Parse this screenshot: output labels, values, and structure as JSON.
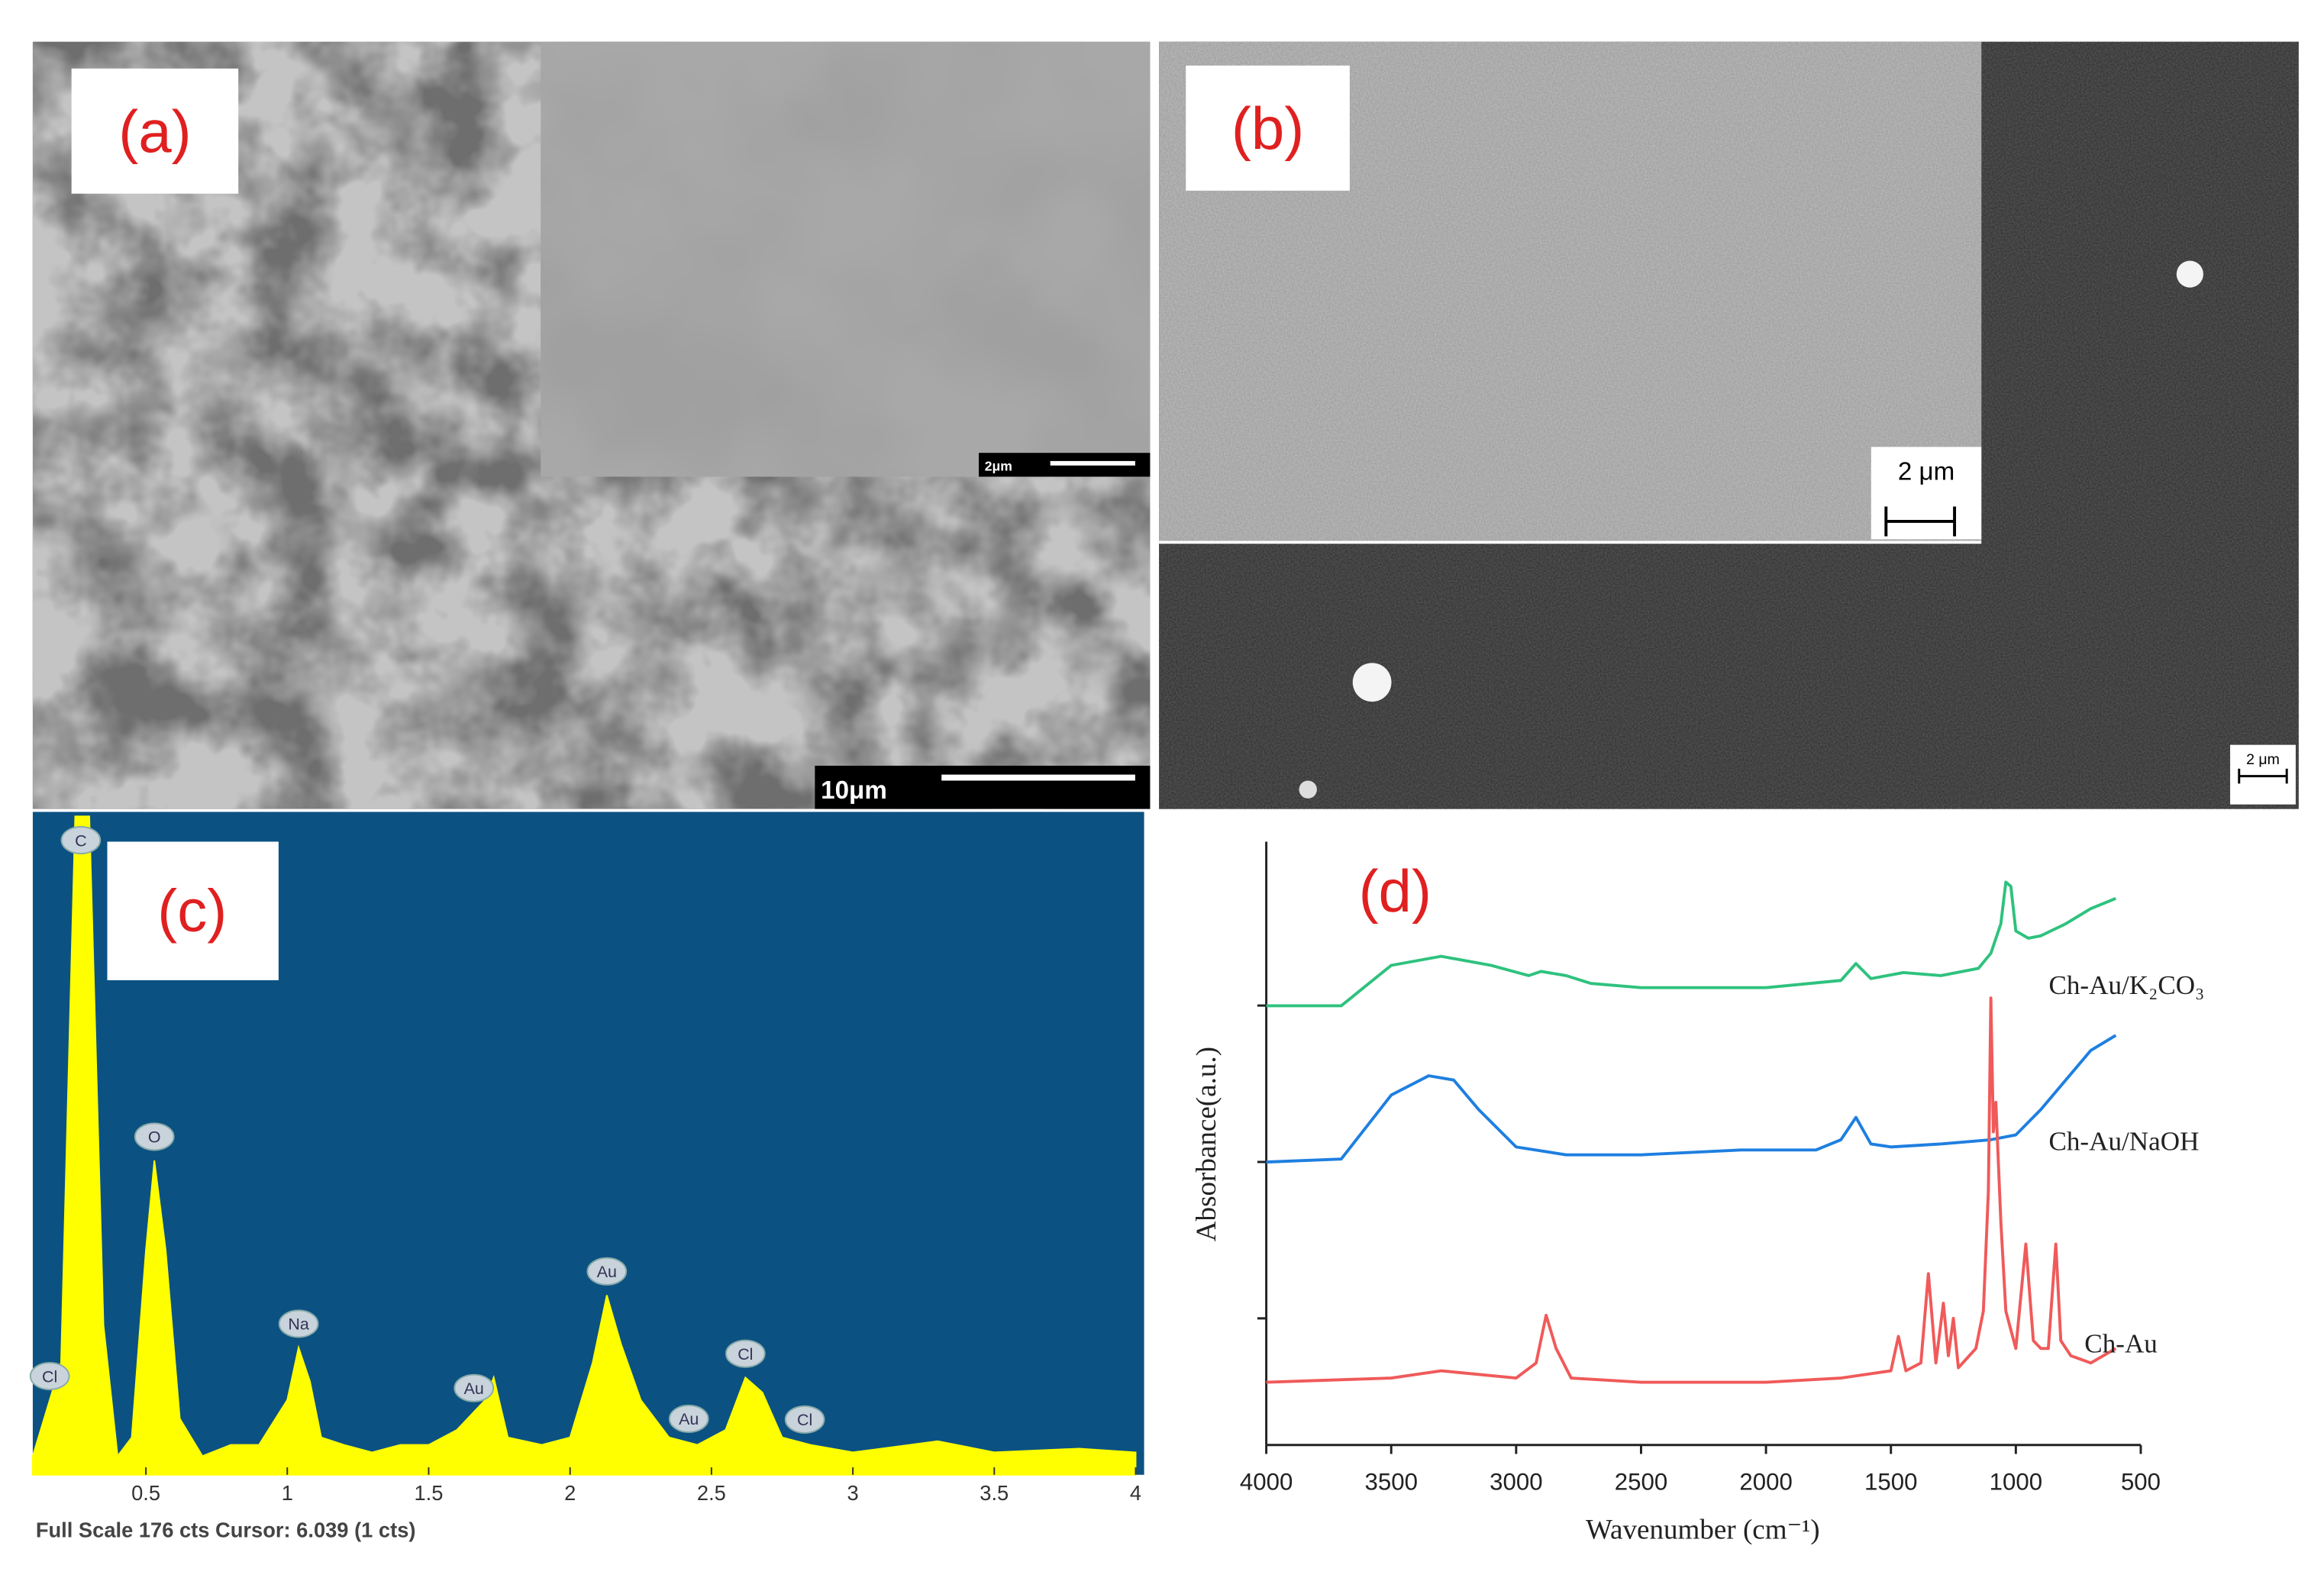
{
  "panels": [
    {
      "label": "(a)",
      "scale_bars": [
        "10μm",
        "2μm"
      ]
    },
    {
      "label": "(b)",
      "scale_bars": [
        "2 μm",
        "2 μm"
      ]
    }
  ],
  "chart_data": [
    {
      "type": "area",
      "label": "(c)",
      "color": "#ffff00",
      "x": [
        0.1,
        0.2,
        0.25,
        0.3,
        0.35,
        0.4,
        0.45,
        0.5,
        0.53,
        0.57,
        0.62,
        0.7,
        0.8,
        0.9,
        1.0,
        1.04,
        1.08,
        1.12,
        1.2,
        1.3,
        1.4,
        1.5,
        1.6,
        1.7,
        1.73,
        1.78,
        1.9,
        2.0,
        2.08,
        2.13,
        2.18,
        2.25,
        2.35,
        2.45,
        2.55,
        2.62,
        2.68,
        2.75,
        2.85,
        3.0,
        3.3,
        3.5,
        3.8,
        4.0
      ],
      "values": [
        5,
        30,
        176,
        176,
        40,
        5,
        10,
        60,
        84,
        60,
        15,
        5,
        8,
        8,
        20,
        34,
        25,
        10,
        8,
        6,
        8,
        8,
        12,
        20,
        26,
        10,
        8,
        10,
        30,
        48,
        35,
        20,
        10,
        8,
        12,
        26,
        22,
        10,
        8,
        6,
        9,
        6,
        7,
        6
      ],
      "xlim": [
        0.1,
        4.03
      ],
      "xticks": [
        0.5,
        1,
        1.5,
        2,
        2.5,
        3,
        3.5,
        4
      ],
      "ylim": [
        0,
        176
      ],
      "peak_labels": [
        {
          "text": "C",
          "x": 0.27
        },
        {
          "text": "Cl",
          "x": 0.16
        },
        {
          "text": "O",
          "x": 0.53
        },
        {
          "text": "Na",
          "x": 1.04
        },
        {
          "text": "Au",
          "x": 1.66
        },
        {
          "text": "Au",
          "x": 2.13
        },
        {
          "text": "Au",
          "x": 2.42
        },
        {
          "text": "Cl",
          "x": 2.62
        },
        {
          "text": "Cl",
          "x": 2.83
        }
      ],
      "footer": "Full Scale 176 cts Cursor: 6.039  (1 cts)"
    },
    {
      "type": "line",
      "label": "(d)",
      "xlabel": "Wavenumber (cm⁻¹)",
      "ylabel": "Absorbance(a.u.)",
      "xlim": [
        4000,
        500
      ],
      "xticks": [
        4000,
        3500,
        3000,
        2500,
        2000,
        1500,
        1000,
        500
      ],
      "ylim": [
        0,
        10
      ],
      "series": [
        {
          "name": "Ch-Au/K₂CO₃",
          "color": "#2ec27e",
          "x": [
            4000,
            3700,
            3500,
            3300,
            3100,
            2950,
            2900,
            2800,
            2700,
            2500,
            2000,
            1700,
            1640,
            1580,
            1450,
            1300,
            1150,
            1100,
            1060,
            1040,
            1020,
            1000,
            950,
            900,
            800,
            700,
            600
          ],
          "values": [
            7.28,
            7.28,
            7.95,
            8.1,
            7.95,
            7.78,
            7.85,
            7.78,
            7.65,
            7.58,
            7.58,
            7.7,
            7.98,
            7.73,
            7.83,
            7.78,
            7.9,
            8.15,
            8.64,
            9.33,
            9.26,
            8.52,
            8.4,
            8.44,
            8.64,
            8.89,
            9.06
          ]
        },
        {
          "name": "Ch-Au/NaOH",
          "color": "#1e7fe0",
          "x": [
            4000,
            3700,
            3500,
            3350,
            3250,
            3150,
            3000,
            2800,
            2500,
            2100,
            1800,
            1700,
            1640,
            1580,
            1500,
            1300,
            1100,
            1000,
            900,
            800,
            700,
            600
          ],
          "values": [
            4.69,
            4.74,
            5.8,
            6.12,
            6.05,
            5.56,
            4.94,
            4.81,
            4.81,
            4.89,
            4.89,
            5.06,
            5.43,
            4.99,
            4.94,
            4.99,
            5.06,
            5.14,
            5.56,
            6.05,
            6.54,
            6.79
          ]
        },
        {
          "name": "Ch-Au",
          "color": "#f05a5a",
          "x": [
            4000,
            3500,
            3300,
            3000,
            2920,
            2880,
            2840,
            2780,
            2500,
            2000,
            1700,
            1500,
            1470,
            1440,
            1380,
            1350,
            1320,
            1290,
            1270,
            1250,
            1230,
            1160,
            1130,
            1110,
            1100,
            1090,
            1080,
            1060,
            1040,
            1000,
            960,
            930,
            900,
            870,
            840,
            820,
            780,
            700,
            600
          ],
          "values": [
            1.04,
            1.11,
            1.23,
            1.11,
            1.36,
            2.15,
            1.6,
            1.11,
            1.04,
            1.04,
            1.11,
            1.23,
            1.8,
            1.23,
            1.36,
            2.84,
            1.36,
            2.35,
            1.48,
            2.1,
            1.28,
            1.6,
            2.22,
            4.2,
            7.41,
            5.19,
            5.68,
            3.7,
            2.22,
            1.6,
            3.33,
            1.73,
            1.6,
            1.6,
            3.33,
            1.73,
            1.48,
            1.36,
            1.6
          ]
        }
      ]
    }
  ]
}
